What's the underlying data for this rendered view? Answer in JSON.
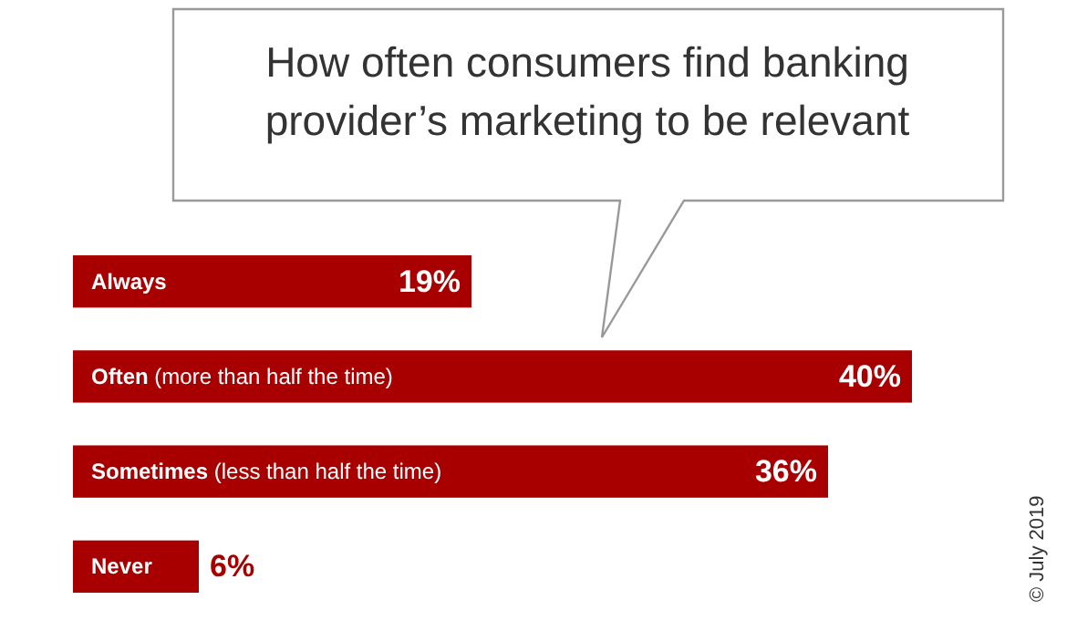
{
  "chart_data": {
    "type": "bar",
    "orientation": "horizontal",
    "title": "How often consumers find banking provider’s marketing to be relevant",
    "categories": [
      "Always",
      "Often (more than half the time)",
      "Sometimes (less than half the time)",
      "Never"
    ],
    "values": [
      19,
      40,
      36,
      6
    ],
    "value_labels": [
      "19%",
      "40%",
      "36%",
      "6%"
    ],
    "color": "#a80000",
    "annotations": [
      "© July 2019"
    ]
  }
}
